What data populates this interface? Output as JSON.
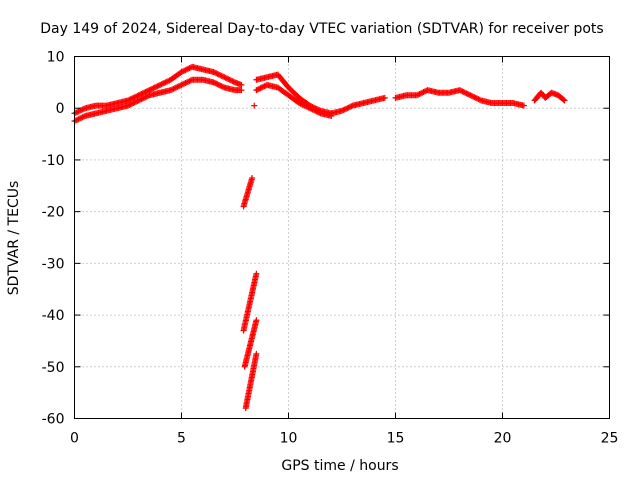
{
  "chart_data": {
    "type": "scatter",
    "title": "Day 149 of 2024, Sidereal Day-to-day VTEC variation (SDTVAR) for receiver pots",
    "xlabel": "GPS time / hours",
    "ylabel": "SDTVAR / TECUs",
    "xlim": [
      0,
      25
    ],
    "ylim": [
      -60,
      10
    ],
    "xticks": [
      0,
      5,
      10,
      15,
      20,
      25
    ],
    "yticks": [
      10,
      0,
      -10,
      -20,
      -30,
      -40,
      -50,
      -60
    ],
    "xtick_labels": [
      "0",
      "5",
      "10",
      "15",
      "20",
      "25"
    ],
    "ytick_labels": [
      "10",
      "0",
      "-10",
      "-20",
      "-30",
      "-40",
      "-50",
      "-60"
    ],
    "grid": true,
    "marker": "+",
    "color": "#ff0000",
    "series": [
      {
        "name": "main-upper",
        "x": [
          0,
          0.5,
          1,
          1.5,
          2,
          2.5,
          3,
          3.5,
          4,
          4.5,
          5,
          5.5,
          6,
          6.5,
          7,
          7.5,
          7.8
        ],
        "y": [
          -1,
          0,
          0.5,
          0.5,
          1,
          1.5,
          2.5,
          3.5,
          4.5,
          5.5,
          7,
          8,
          7.5,
          7,
          6,
          5,
          4.5
        ]
      },
      {
        "name": "main-lower",
        "x": [
          0,
          0.5,
          1,
          1.5,
          2,
          2.5,
          3,
          3.5,
          4,
          4.5,
          5,
          5.5,
          6,
          6.5,
          7,
          7.5,
          7.8
        ],
        "y": [
          -2.5,
          -1.5,
          -1,
          -0.5,
          0,
          0.5,
          1.5,
          2.5,
          3,
          3.5,
          4.5,
          5.5,
          5.5,
          5,
          4,
          3.5,
          3.5
        ]
      },
      {
        "name": "afternoon-a",
        "x": [
          8.5,
          9,
          9.5,
          10,
          10.5,
          11,
          11.5,
          12
        ],
        "y": [
          5.5,
          6,
          6.5,
          4,
          2,
          0.5,
          -0.5,
          -1
        ]
      },
      {
        "name": "afternoon-b",
        "x": [
          8.5,
          9,
          9.5,
          10,
          10.5,
          11,
          11.5,
          12
        ],
        "y": [
          3.5,
          4.5,
          4,
          2.5,
          1,
          0,
          -1,
          -1.5
        ]
      },
      {
        "name": "recovery",
        "x": [
          12,
          12.5,
          13,
          13.5,
          14,
          14.5
        ],
        "y": [
          -1,
          -0.5,
          0.5,
          1,
          1.5,
          2
        ]
      },
      {
        "name": "evening",
        "x": [
          15,
          15.5,
          16,
          16.5,
          17,
          17.5,
          18,
          18.5,
          19,
          19.5,
          20,
          20.5,
          21
        ],
        "y": [
          2,
          2.5,
          2.5,
          3.5,
          3,
          3,
          3.5,
          2.5,
          1.5,
          1,
          1,
          1,
          0.5
        ]
      },
      {
        "name": "late-cluster",
        "x": [
          21.5,
          21.8,
          22,
          22.3,
          22.6,
          22.9
        ],
        "y": [
          1.5,
          3,
          2,
          3,
          2.5,
          1.5
        ]
      },
      {
        "name": "isolated",
        "x": [
          8.4
        ],
        "y": [
          0.5
        ]
      },
      {
        "name": "drop-1",
        "x": [
          7.9,
          8.3
        ],
        "y": [
          -19,
          -13.5
        ]
      },
      {
        "name": "drop-2",
        "x": [
          7.9,
          8.5
        ],
        "y": [
          -43,
          -32
        ]
      },
      {
        "name": "drop-3",
        "x": [
          7.95,
          8.5
        ],
        "y": [
          -50,
          -41
        ]
      },
      {
        "name": "drop-4",
        "x": [
          8.0,
          8.5
        ],
        "y": [
          -58,
          -47.5
        ]
      }
    ]
  }
}
